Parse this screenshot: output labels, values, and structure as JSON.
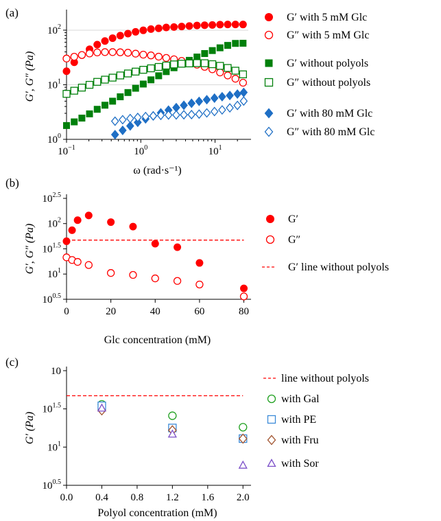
{
  "chart_data": [
    {
      "panel_label": "(a)",
      "type": "scatter",
      "xlabel": "ω (rad·s⁻¹)",
      "ylabel": "G′, G″ (Pa)",
      "xscale": "log",
      "yscale": "log",
      "xlim": [
        0.1,
        28
      ],
      "ylim": [
        1,
        200
      ],
      "x_ticks": [
        "10",
        "10",
        "10"
      ],
      "x_tick_exponents": [
        "−1",
        "0",
        "1"
      ],
      "y_ticks": [
        "10",
        "10",
        "10"
      ],
      "y_tick_exponents": [
        "0",
        "1",
        "2"
      ],
      "grid": "horizontal",
      "legend_position": "right",
      "series": [
        {
          "name": "G′  with 5 mM Glc",
          "marker": "circle-filled",
          "color": "#ff0000",
          "x": [
            0.1,
            0.127,
            0.161,
            0.204,
            0.259,
            0.329,
            0.417,
            0.529,
            0.671,
            0.851,
            1.08,
            1.37,
            1.74,
            2.2,
            2.8,
            3.55,
            4.5,
            5.71,
            7.24,
            9.19,
            11.66,
            14.8,
            18.8,
            23.8
          ],
          "y": [
            17.7,
            25.8,
            34.9,
            44.7,
            54.3,
            63.2,
            71.4,
            79.4,
            86.4,
            93.3,
            99.3,
            104.6,
            108.2,
            112.2,
            114.2,
            116.6,
            119.1,
            121.8,
            123,
            124.6,
            126.2,
            127.2,
            127.2,
            127
          ]
        },
        {
          "name": "G″  with 5 mM Glc",
          "marker": "circle-open",
          "color": "#ff0000",
          "x": [
            0.1,
            0.127,
            0.161,
            0.204,
            0.259,
            0.329,
            0.417,
            0.529,
            0.671,
            0.851,
            1.08,
            1.37,
            1.74,
            2.2,
            2.8,
            3.55,
            4.5,
            5.71,
            7.24,
            9.19,
            11.66,
            14.8,
            18.8,
            23.8
          ],
          "y": [
            30.2,
            32.6,
            35.1,
            37.4,
            39.1,
            39.6,
            39.6,
            39.3,
            38.6,
            37.1,
            35.6,
            34.5,
            32.7,
            31,
            29.3,
            27.3,
            25.4,
            23.3,
            21.3,
            19.2,
            16.8,
            14.8,
            12.9,
            10.9
          ]
        },
        {
          "name": "G′  without polyols",
          "marker": "square-filled",
          "color": "#00800b",
          "x": [
            0.1,
            0.127,
            0.161,
            0.204,
            0.259,
            0.329,
            0.417,
            0.529,
            0.671,
            0.851,
            1.08,
            1.37,
            1.74,
            2.2,
            2.8,
            3.55,
            4.5,
            5.71,
            7.24,
            9.19,
            11.66,
            14.8,
            18.8,
            23.8
          ],
          "y": [
            1.79,
            2.09,
            2.45,
            2.93,
            3.55,
            4.22,
            5,
            6.02,
            7.2,
            8.63,
            10.3,
            12.3,
            14.6,
            17.4,
            20.5,
            24,
            28,
            32.2,
            37.3,
            42.3,
            47.5,
            52.6,
            57.2,
            57.6
          ]
        },
        {
          "name": "G″  without polyols",
          "marker": "square-open",
          "color": "#00800b",
          "x": [
            0.1,
            0.127,
            0.161,
            0.204,
            0.259,
            0.329,
            0.417,
            0.529,
            0.671,
            0.851,
            1.08,
            1.37,
            1.74,
            2.2,
            2.8,
            3.55,
            4.5,
            5.71,
            7.24,
            9.19,
            11.66,
            14.8,
            18.8,
            23.8
          ],
          "y": [
            6.81,
            7.78,
            8.87,
            9.97,
            11.3,
            12.4,
            13.5,
            14.8,
            16.1,
            17.4,
            18.8,
            20,
            21.2,
            22.5,
            23.6,
            24.3,
            24.6,
            24.9,
            24.8,
            23.8,
            22.2,
            20.3,
            18.1,
            15.5
          ]
        },
        {
          "name": "G′  with 80 mM Glc",
          "marker": "diamond-filled",
          "color": "#1f6fc5",
          "x": [
            0.45,
            0.57,
            0.72,
            0.91,
            1.16,
            1.47,
            1.86,
            2.36,
            3,
            3.8,
            4.82,
            6.1,
            7.74,
            9.82,
            12.45,
            15.8,
            20,
            24.3
          ],
          "y": [
            1.22,
            1.46,
            1.76,
            2.05,
            2.37,
            2.69,
            3.06,
            3.43,
            3.82,
            4.21,
            4.58,
            4.97,
            5.32,
            5.69,
            6.04,
            6.36,
            6.76,
            7.23
          ]
        },
        {
          "name": "G″  with 80 mM Glc",
          "marker": "diamond-open",
          "color": "#1f6fc5",
          "x": [
            0.45,
            0.57,
            0.72,
            0.91,
            1.16,
            1.47,
            1.86,
            2.36,
            3,
            3.8,
            4.82,
            6.1,
            7.74,
            9.82,
            12.45,
            15.8,
            20,
            24.3
          ],
          "y": [
            2.15,
            2.29,
            2.41,
            2.52,
            2.62,
            2.69,
            2.75,
            2.79,
            2.8,
            2.82,
            2.84,
            2.9,
            3.05,
            3.23,
            3.46,
            3.77,
            4.18,
            5.03
          ]
        }
      ]
    },
    {
      "panel_label": "(b)",
      "type": "scatter",
      "xlabel": "Glc concentration (mM)",
      "ylabel": "G′, G″ (Pa)",
      "yscale": "log",
      "xlim": [
        0,
        82
      ],
      "ylim": [
        3.16,
        316
      ],
      "x_ticks": [
        "0",
        "20",
        "40",
        "60",
        "80"
      ],
      "y_ticks": [
        "10",
        "10",
        "10",
        "10",
        "10"
      ],
      "y_tick_exponents": [
        "0.5",
        "1",
        "1.5",
        "2",
        "2.5"
      ],
      "legend_position": "right",
      "series": [
        {
          "name": "G′",
          "marker": "circle-filled",
          "color": "#ff0000",
          "x": [
            0,
            2.5,
            5,
            10,
            20,
            30,
            40,
            50,
            60,
            80
          ],
          "y": [
            44.7,
            74,
            117,
            145,
            107,
            87,
            40,
            34,
            16.6,
            5.2
          ]
        },
        {
          "name": "G″",
          "marker": "circle-open",
          "color": "#ff0000",
          "x": [
            0,
            2.5,
            5,
            10,
            20,
            30,
            40,
            50,
            60,
            80
          ],
          "y": [
            21.4,
            19,
            17.4,
            15.1,
            10.5,
            9.6,
            8.2,
            7.3,
            6.2,
            3.6
          ]
        },
        {
          "name": "G′ line without polyols",
          "marker": "dashed-line",
          "color": "#ff0000",
          "x": [
            0,
            80
          ],
          "y": [
            47,
            47
          ]
        }
      ]
    },
    {
      "panel_label": "(c)",
      "type": "scatter",
      "xlabel": "Polyol concentration (mM)",
      "ylabel": "G′ (Pa)",
      "yscale": "log",
      "xlim": [
        0,
        2.06
      ],
      "ylim": [
        3.16,
        100
      ],
      "x_ticks": [
        "0.0",
        "0.4",
        "0.8",
        "1.2",
        "1.6",
        "2.0"
      ],
      "y_ticks": [
        "10",
        "10",
        "10",
        "10"
      ],
      "y_tick_exponents": [
        "0.5",
        "1",
        "1.5",
        ""
      ],
      "legend_position": "right",
      "series": [
        {
          "name": "line without polyols",
          "marker": "dashed-line",
          "color": "#ff0000",
          "x": [
            0,
            2.0
          ],
          "y": [
            47,
            47
          ]
        },
        {
          "name": "with Gal",
          "marker": "circle-open",
          "color": "#1fa01f",
          "x": [
            0.4,
            1.2,
            2.0
          ],
          "y": [
            36.3,
            25.7,
            18.2
          ]
        },
        {
          "name": "with PE",
          "marker": "square-open",
          "color": "#3b8ad8",
          "x": [
            0.4,
            1.2,
            2.0
          ],
          "y": [
            34.7,
            17.8,
            12.9
          ]
        },
        {
          "name": "with Fru",
          "marker": "diamond-open",
          "color": "#a0522d",
          "x": [
            0.4,
            1.2,
            2.0
          ],
          "y": [
            30.2,
            16.6,
            12.9
          ]
        },
        {
          "name": "with Sor",
          "marker": "triangle-open",
          "color": "#7b4fc8",
          "x": [
            0.4,
            1.2,
            2.0
          ],
          "y": [
            32.4,
            14.8,
            5.8
          ]
        }
      ]
    }
  ]
}
